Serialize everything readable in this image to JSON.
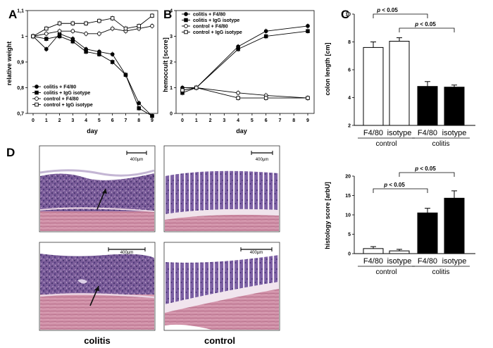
{
  "panels": {
    "a": "A",
    "b": "B",
    "c": "C",
    "d": "D"
  },
  "chart_data": [
    {
      "id": "A",
      "type": "line",
      "xlabel": "day",
      "ylabel": "relative weight",
      "xlim": [
        0,
        9
      ],
      "ylim": [
        0.7,
        1.1
      ],
      "x_ticks": [
        "0",
        "1",
        "2",
        "3",
        "4",
        "5",
        "6",
        "7",
        "8",
        "9"
      ],
      "y_ticks": [
        "0,7",
        "0,8",
        "0,9",
        "1",
        "1,1"
      ],
      "legend_position": "bottom-left",
      "series": [
        {
          "name": "colitis + F4/80",
          "marker": "filled-circle",
          "x": [
            0,
            1,
            2,
            3,
            4,
            5,
            6,
            7,
            8,
            9
          ],
          "y": [
            1.0,
            0.95,
            1.01,
            0.99,
            0.95,
            0.94,
            0.93,
            0.85,
            0.74,
            0.69
          ]
        },
        {
          "name": "colitis + IgG isotype",
          "marker": "filled-square",
          "x": [
            0,
            1,
            2,
            3,
            4,
            5,
            6,
            7,
            8,
            9
          ],
          "y": [
            1.0,
            0.99,
            1.0,
            0.98,
            0.94,
            0.93,
            0.9,
            0.85,
            0.72,
            0.69
          ]
        },
        {
          "name": "control + F4/80",
          "marker": "open-circle",
          "x": [
            0,
            1,
            2,
            3,
            4,
            5,
            6,
            7,
            8,
            9
          ],
          "y": [
            1.0,
            1.01,
            1.02,
            1.02,
            1.01,
            1.01,
            1.03,
            1.02,
            1.03,
            1.04
          ]
        },
        {
          "name": "control + IgG isotype",
          "marker": "open-square",
          "x": [
            0,
            1,
            2,
            3,
            4,
            5,
            6,
            7,
            8,
            9
          ],
          "y": [
            1.0,
            1.03,
            1.05,
            1.05,
            1.05,
            1.06,
            1.07,
            1.03,
            1.04,
            1.08
          ]
        }
      ]
    },
    {
      "id": "B",
      "type": "line",
      "xlabel": "day",
      "ylabel": "hemoccult [score]",
      "xlim": [
        0,
        9
      ],
      "ylim": [
        0,
        4
      ],
      "x_ticks": [
        "0",
        "1",
        "2",
        "3",
        "4",
        "5",
        "6",
        "7",
        "8",
        "9"
      ],
      "y_ticks": [
        "0",
        "1",
        "2",
        "3",
        "4"
      ],
      "legend_position": "top-left",
      "series": [
        {
          "name": "colitis + F4/80",
          "marker": "filled-circle",
          "x": [
            0,
            1,
            4,
            6,
            9
          ],
          "y": [
            1.0,
            1.0,
            2.6,
            3.2,
            3.4
          ]
        },
        {
          "name": "colitis + IgG isotype",
          "marker": "filled-square",
          "x": [
            0,
            1,
            4,
            6,
            9
          ],
          "y": [
            0.8,
            1.0,
            2.5,
            3.0,
            3.2
          ]
        },
        {
          "name": "control + F4/80",
          "marker": "open-circle",
          "x": [
            0,
            1,
            4,
            6,
            9
          ],
          "y": [
            0.9,
            1.0,
            0.8,
            0.7,
            0.6
          ]
        },
        {
          "name": "control + IgG isotype",
          "marker": "open-square",
          "x": [
            0,
            1,
            4,
            6,
            9
          ],
          "y": [
            0.9,
            1.0,
            0.6,
            0.6,
            0.6
          ]
        }
      ]
    },
    {
      "id": "C",
      "type": "bar",
      "ylabel": "colon length [cm]",
      "ylim": [
        2,
        10
      ],
      "y_ticks": [
        "2",
        "4",
        "6",
        "8",
        "10"
      ],
      "categories": [
        "F4/80",
        "isotype",
        "F4/80",
        "isotype"
      ],
      "groups": [
        "control",
        "control",
        "colitis",
        "colitis"
      ],
      "group_labels": [
        "control",
        "colitis"
      ],
      "values": [
        7.6,
        8.05,
        4.8,
        4.75
      ],
      "errors": [
        0.4,
        0.25,
        0.35,
        0.15
      ],
      "fills": [
        "#ffffff",
        "#ffffff",
        "#000000",
        "#000000"
      ],
      "significance": [
        {
          "from": 0,
          "to": 2,
          "label": "p < 0.05"
        },
        {
          "from": 1,
          "to": 3,
          "label": "p < 0.05"
        }
      ]
    },
    {
      "id": "D",
      "type": "bar",
      "ylabel": "histology score [arbU]",
      "ylim": [
        0,
        20
      ],
      "y_ticks": [
        "0",
        "5",
        "10",
        "15",
        "20"
      ],
      "categories": [
        "F4/80",
        "isotype",
        "F4/80",
        "isotype"
      ],
      "groups": [
        "control",
        "control",
        "colitis",
        "colitis"
      ],
      "group_labels": [
        "control",
        "colitis"
      ],
      "values": [
        1.3,
        0.7,
        10.5,
        14.3
      ],
      "errors": [
        0.5,
        0.4,
        1.2,
        1.9
      ],
      "fills": [
        "#ffffff",
        "#ffffff",
        "#000000",
        "#000000"
      ],
      "significance": [
        {
          "from": 0,
          "to": 2,
          "label": "p < 0.05"
        },
        {
          "from": 1,
          "to": 3,
          "label": "p < 0.05"
        }
      ]
    }
  ],
  "micrographs": {
    "scale_bar": "400µm",
    "colitis_caption": "colitis",
    "control_caption": "control",
    "colors": {
      "mucosa": "#6a4f93",
      "submucosa": "#f1e6ee",
      "muscle": "#c98aa2",
      "background": "#ffffff"
    }
  }
}
